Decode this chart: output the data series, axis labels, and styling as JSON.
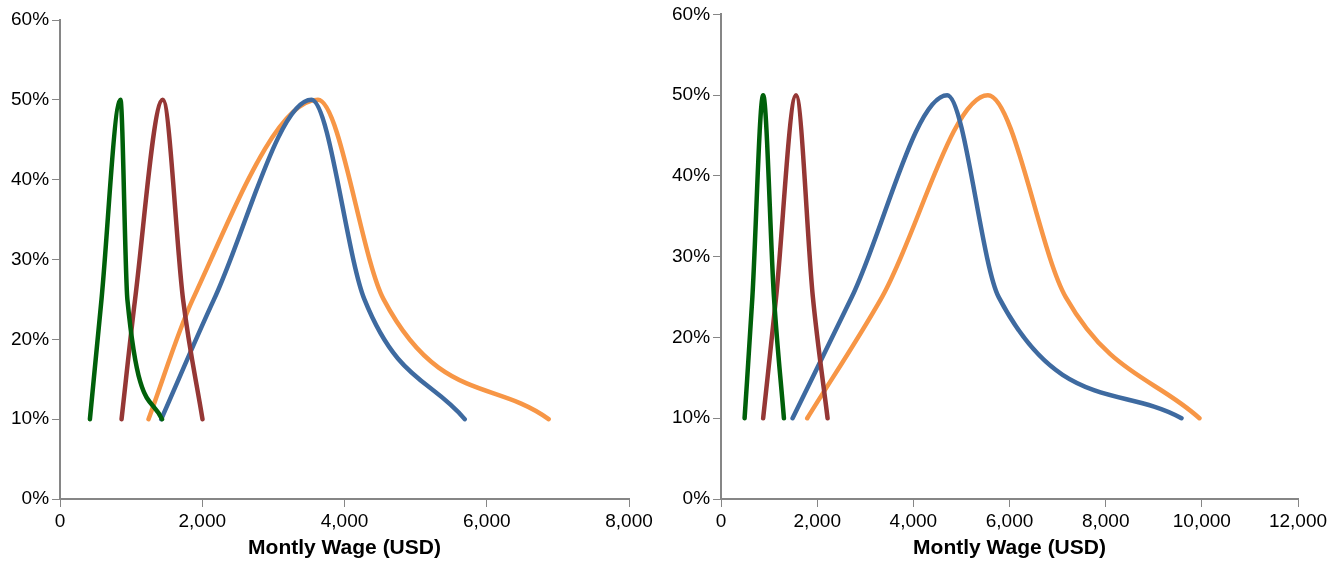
{
  "chart_data": [
    {
      "type": "line",
      "xlabel": "Montly Wage (USD)",
      "xlim": [
        0,
        8000
      ],
      "xticks": [
        0,
        {
          "value": 2000,
          "label": "2,000"
        },
        {
          "value": 4000,
          "label": "4,000"
        },
        {
          "value": 6000,
          "label": "6,000"
        },
        {
          "value": 8000,
          "label": "8,000"
        }
      ],
      "ylim": [
        0,
        60
      ],
      "yticks": [
        {
          "value": 0,
          "label": "0%"
        },
        {
          "value": 10,
          "label": "10%"
        },
        {
          "value": 20,
          "label": "20%"
        },
        {
          "value": 30,
          "label": "30%"
        },
        {
          "value": 40,
          "label": "40%"
        },
        {
          "value": 50,
          "label": "50%"
        },
        {
          "value": 60,
          "label": "60%"
        }
      ],
      "grid": false,
      "legend": false,
      "marker": "none",
      "line_style": "solid",
      "series": [
        {
          "color": "#00600a",
          "x": [
            420,
            583,
            850,
            947,
            1434
          ],
          "values": [
            10,
            25,
            50,
            25,
            10
          ]
        },
        {
          "color": "#953735",
          "x": [
            865,
            1055,
            1445,
            1730,
            2003
          ],
          "values": [
            10,
            25,
            50,
            25,
            10
          ]
        },
        {
          "color": "#3e6aa0",
          "x": [
            1423,
            2165,
            3536,
            4280,
            5690
          ],
          "values": [
            10,
            25,
            50,
            25,
            10
          ]
        },
        {
          "color": "#f79646",
          "x": [
            1244,
            1866,
            3627,
            4550,
            6870
          ],
          "values": [
            10,
            25,
            50,
            25,
            10
          ]
        }
      ]
    },
    {
      "type": "line",
      "xlabel": "Montly Wage (USD)",
      "xlim": [
        0,
        12000
      ],
      "xticks": [
        0,
        {
          "value": 2000,
          "label": "2,000"
        },
        {
          "value": 4000,
          "label": "4,000"
        },
        {
          "value": 6000,
          "label": "6,000"
        },
        {
          "value": 8000,
          "label": "8,000"
        },
        {
          "value": 10000,
          "label": "10,000"
        },
        {
          "value": 12000,
          "label": "12,000"
        }
      ],
      "ylim": [
        0,
        60
      ],
      "yticks": [
        {
          "value": 0,
          "label": "0%"
        },
        {
          "value": 10,
          "label": "10%"
        },
        {
          "value": 20,
          "label": "20%"
        },
        {
          "value": 30,
          "label": "30%"
        },
        {
          "value": 40,
          "label": "40%"
        },
        {
          "value": 50,
          "label": "50%"
        },
        {
          "value": 60,
          "label": "60%"
        }
      ],
      "grid": false,
      "legend": false,
      "marker": "none",
      "line_style": "solid",
      "series": [
        {
          "color": "#00600a",
          "x": [
            490,
            652,
            876,
            1101,
            1308
          ],
          "values": [
            10,
            25,
            50,
            25,
            10
          ]
        },
        {
          "color": "#953735",
          "x": [
            876,
            1146,
            1560,
            1910,
            2216
          ],
          "values": [
            10,
            25,
            50,
            25,
            10
          ]
        },
        {
          "color": "#3e6aa0",
          "x": [
            1488,
            2720,
            4705,
            5775,
            9577
          ],
          "values": [
            10,
            25,
            50,
            25,
            10
          ]
        },
        {
          "color": "#f79646",
          "x": [
            1793,
            3348,
            5551,
            7169,
            9950
          ],
          "values": [
            10,
            25,
            50,
            25,
            10
          ]
        }
      ]
    }
  ]
}
